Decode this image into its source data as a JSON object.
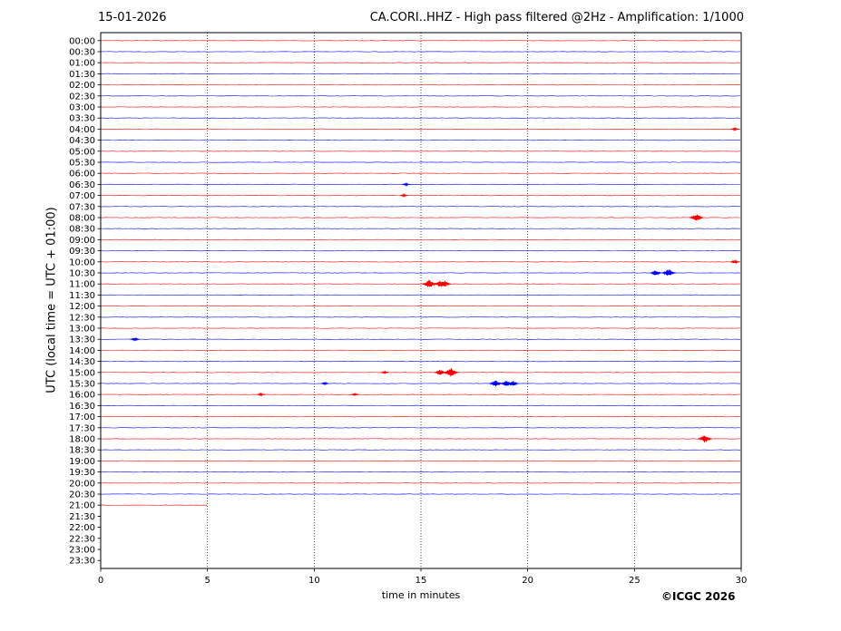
{
  "header": {
    "date": "15-01-2026",
    "title": "CA.CORI..HHZ - High pass filtered @2Hz - Amplification: 1/1000"
  },
  "copyright": "©ICGC 2026",
  "colors": {
    "odd_trace": "#ff0000",
    "even_trace": "#0000ff",
    "grid": "#000000"
  },
  "chart_data": {
    "type": "line",
    "subtype": "helicorder",
    "xlabel": "time in minutes",
    "ylabel": "UTC (local time = UTC + 01:00)",
    "xlim": [
      0,
      30
    ],
    "x_ticks": [
      0,
      5,
      10,
      15,
      20,
      25,
      30
    ],
    "grid": "vertical dotted at x ticks",
    "rows": [
      "00:00",
      "00:30",
      "01:00",
      "01:30",
      "02:00",
      "02:30",
      "03:00",
      "03:30",
      "04:00",
      "04:30",
      "05:00",
      "05:30",
      "06:00",
      "06:30",
      "07:00",
      "07:30",
      "08:00",
      "08:30",
      "09:00",
      "09:30",
      "10:00",
      "10:30",
      "11:00",
      "11:30",
      "12:00",
      "12:30",
      "13:00",
      "13:30",
      "14:00",
      "14:30",
      "15:00",
      "15:30",
      "16:00",
      "16:30",
      "17:00",
      "17:30",
      "18:00",
      "18:30",
      "19:00",
      "19:30",
      "20:00",
      "20:30",
      "21:00",
      "21:30",
      "22:00",
      "22:30",
      "23:00",
      "23:30"
    ],
    "row_colors": [
      "red",
      "blue"
    ],
    "last_row_with_data": "21:00",
    "last_row_data_end_minute": 5,
    "events": [
      {
        "row": "04:00",
        "minute": 29.7,
        "amplitude": 0.2
      },
      {
        "row": "06:30",
        "minute": 14.3,
        "amplitude": 0.2
      },
      {
        "row": "07:00",
        "minute": 14.2,
        "amplitude": 0.2
      },
      {
        "row": "08:00",
        "minute": 27.9,
        "amplitude": 0.7
      },
      {
        "row": "10:00",
        "minute": 29.7,
        "amplitude": 0.3
      },
      {
        "row": "10:30",
        "minute": 26.0,
        "amplitude": 0.5
      },
      {
        "row": "10:30",
        "minute": 26.6,
        "amplitude": 0.7
      },
      {
        "row": "11:00",
        "minute": 15.4,
        "amplitude": 0.8
      },
      {
        "row": "11:00",
        "minute": 15.9,
        "amplitude": 0.6
      },
      {
        "row": "11:00",
        "minute": 16.1,
        "amplitude": 0.6
      },
      {
        "row": "13:30",
        "minute": 1.6,
        "amplitude": 0.3
      },
      {
        "row": "15:00",
        "minute": 15.9,
        "amplitude": 0.5
      },
      {
        "row": "15:00",
        "minute": 16.4,
        "amplitude": 0.8
      },
      {
        "row": "15:00",
        "minute": 13.3,
        "amplitude": 0.2
      },
      {
        "row": "15:30",
        "minute": 18.5,
        "amplitude": 0.6
      },
      {
        "row": "15:30",
        "minute": 19.0,
        "amplitude": 0.5
      },
      {
        "row": "15:30",
        "minute": 19.3,
        "amplitude": 0.5
      },
      {
        "row": "15:30",
        "minute": 10.5,
        "amplitude": 0.2
      },
      {
        "row": "16:00",
        "minute": 7.5,
        "amplitude": 0.2
      },
      {
        "row": "16:00",
        "minute": 11.9,
        "amplitude": 0.2
      },
      {
        "row": "18:00",
        "minute": 28.3,
        "amplitude": 0.7
      }
    ]
  }
}
